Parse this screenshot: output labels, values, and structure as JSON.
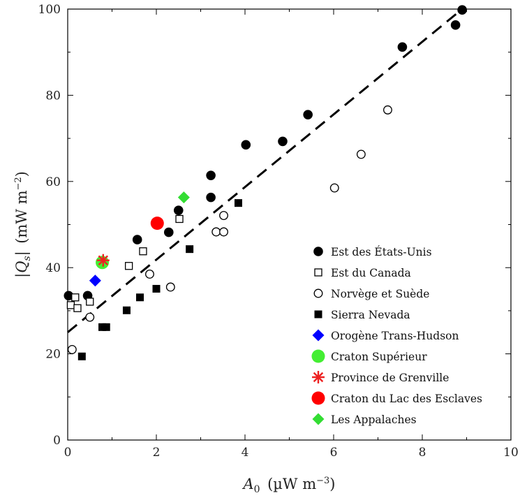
{
  "chart_data": {
    "type": "scatter",
    "xlabel": {
      "main": "A",
      "sub": "0",
      "unit": "(µW m",
      "sup": "−3",
      "close": ")"
    },
    "ylabel": {
      "pre": "|",
      "main": "Q",
      "sub": "s",
      "post": "|",
      "unit": "(mW m",
      "sup": "−2",
      "close": ")"
    },
    "xlim": [
      0,
      10
    ],
    "ylim": [
      0,
      100
    ],
    "xticks": [
      "0",
      "2",
      "4",
      "6",
      "8",
      "10"
    ],
    "yticks": [
      "0",
      "20",
      "40",
      "60",
      "80",
      "100"
    ],
    "grid": false,
    "legend_position": "bottom-right",
    "fit_line": {
      "style": "dashed",
      "color": "#000000",
      "points": [
        [
          0,
          25
        ],
        [
          8.9,
          100
        ]
      ]
    },
    "series": [
      {
        "name": "Est des États-Unis",
        "marker": "circle-filled",
        "color": "#000000",
        "points": [
          [
            0.02,
            33.5
          ],
          [
            0.45,
            33.5
          ],
          [
            1.57,
            46.5
          ],
          [
            2.28,
            48.2
          ],
          [
            2.5,
            53.3
          ],
          [
            3.23,
            56.3
          ],
          [
            3.23,
            61.4
          ],
          [
            4.02,
            68.5
          ],
          [
            4.85,
            69.3
          ],
          [
            5.42,
            75.5
          ],
          [
            7.55,
            91.2
          ],
          [
            8.75,
            96.3
          ],
          [
            8.9,
            99.8
          ]
        ]
      },
      {
        "name": "Est du Canada",
        "marker": "square-open",
        "color": "#000000",
        "points": [
          [
            0.07,
            31.3
          ],
          [
            0.17,
            33.1
          ],
          [
            0.22,
            30.6
          ],
          [
            0.5,
            32.1
          ],
          [
            1.38,
            40.4
          ],
          [
            1.7,
            43.8
          ],
          [
            2.52,
            51.3
          ]
        ]
      },
      {
        "name": "Norvège et Suède",
        "marker": "circle-open",
        "color": "#000000",
        "points": [
          [
            0.1,
            21.0
          ],
          [
            0.5,
            28.5
          ],
          [
            1.85,
            38.5
          ],
          [
            2.32,
            35.5
          ],
          [
            3.35,
            48.3
          ],
          [
            3.52,
            48.3
          ],
          [
            3.52,
            52.1
          ],
          [
            6.02,
            58.5
          ],
          [
            6.62,
            66.3
          ],
          [
            7.22,
            76.6
          ]
        ]
      },
      {
        "name": "Sierra Nevada",
        "marker": "square-filled",
        "color": "#000000",
        "points": [
          [
            0.32,
            19.4
          ],
          [
            0.78,
            26.2
          ],
          [
            0.87,
            26.2
          ],
          [
            1.33,
            30.1
          ],
          [
            1.63,
            33.1
          ],
          [
            2.0,
            35.1
          ],
          [
            2.75,
            44.3
          ],
          [
            3.85,
            55.0
          ]
        ]
      },
      {
        "name": "Orogène Trans-Hudson",
        "marker": "diamond-filled",
        "color": "#0000ff",
        "points": [
          [
            0.62,
            37.0
          ]
        ]
      },
      {
        "name": "Craton Supérieur",
        "marker": "circle-filled-large",
        "color": "#44ee33",
        "points": [
          [
            0.78,
            41.2
          ]
        ]
      },
      {
        "name": "Province de Grenville",
        "marker": "asterisk",
        "color": "#ee2222",
        "points": [
          [
            0.8,
            41.7
          ]
        ]
      },
      {
        "name": "Craton du Lac des Esclaves",
        "marker": "circle-filled-large",
        "color": "#ff0000",
        "points": [
          [
            2.02,
            50.3
          ]
        ]
      },
      {
        "name": "Les Appalaches",
        "marker": "diamond-filled",
        "color": "#33dd33",
        "points": [
          [
            2.62,
            56.3
          ]
        ]
      }
    ]
  }
}
